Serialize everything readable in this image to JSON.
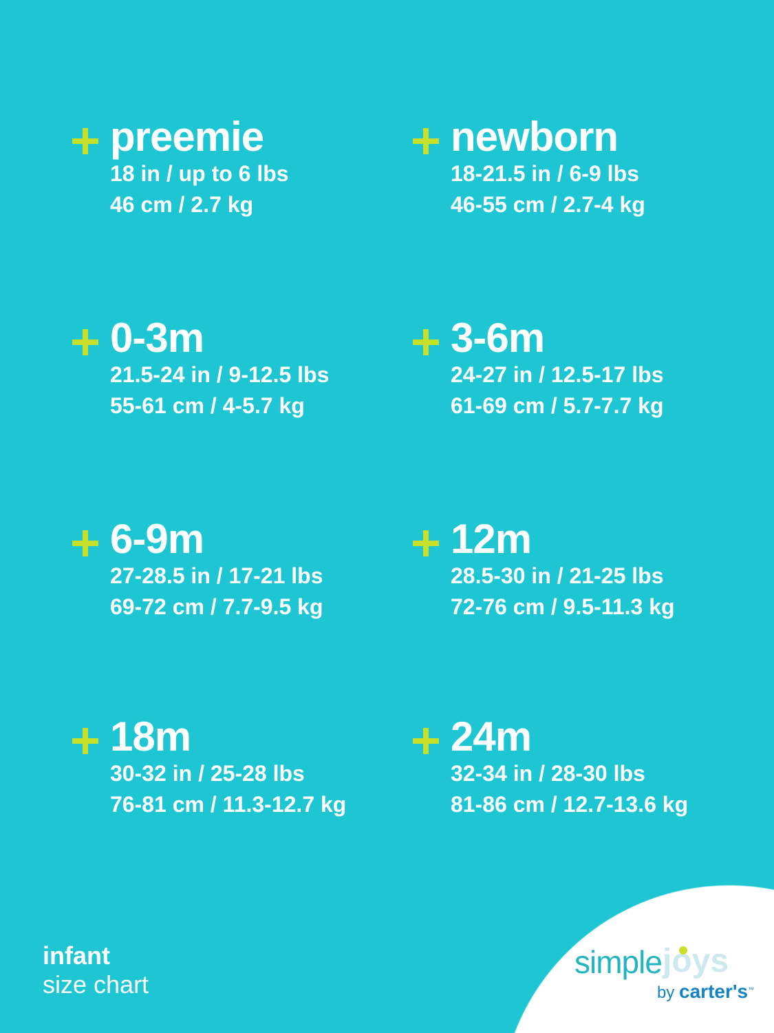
{
  "sizes": [
    {
      "name": "preemie",
      "imperial": "18 in / up to 6 lbs",
      "metric": "46 cm / 2.7 kg"
    },
    {
      "name": "newborn",
      "imperial": "18-21.5 in / 6-9 lbs",
      "metric": "46-55 cm / 2.7-4 kg"
    },
    {
      "name": "0-3m",
      "imperial": "21.5-24 in / 9-12.5 lbs",
      "metric": "55-61 cm / 4-5.7 kg"
    },
    {
      "name": "3-6m",
      "imperial": "24-27 in / 12.5-17 lbs",
      "metric": "61-69 cm / 5.7-7.7 kg"
    },
    {
      "name": "6-9m",
      "imperial": "27-28.5 in / 17-21 lbs",
      "metric": "69-72 cm / 7.7-9.5 kg"
    },
    {
      "name": "12m",
      "imperial": "28.5-30 in / 21-25 lbs",
      "metric": "72-76 cm / 9.5-11.3 kg"
    },
    {
      "name": "18m",
      "imperial": "30-32 in / 25-28 lbs",
      "metric": "76-81 cm / 11.3-12.7 kg"
    },
    {
      "name": "24m",
      "imperial": "32-34 in / 28-30 lbs",
      "metric": "81-86 cm / 12.7-13.6 kg"
    }
  ],
  "footer": {
    "line1": "infant",
    "line2": "size chart"
  },
  "logo": {
    "simple": "simple",
    "joys": "joys",
    "by": "by",
    "brand": "carter's",
    "tm": "™"
  },
  "colors": {
    "background": "#1ec6d3",
    "plus": "#c8e02a",
    "text": "#ffffff"
  },
  "icons": {
    "bullet": "plus-icon"
  }
}
